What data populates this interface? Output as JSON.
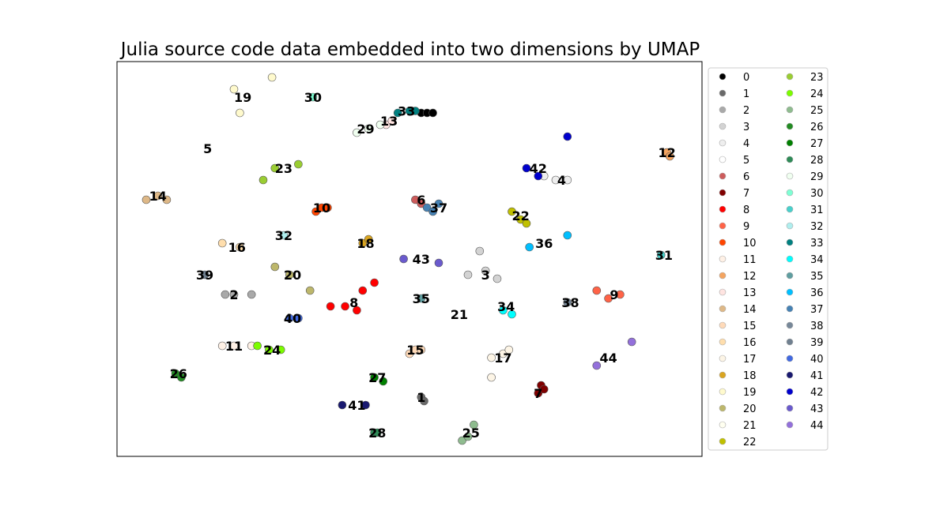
{
  "chart_data": {
    "type": "scatter",
    "title": "Julia source code data embedded into two dimensions by UMAP",
    "xlabel": "",
    "ylabel": "",
    "grid": false,
    "ticks": false,
    "legend_position": "outside-right",
    "legend_columns": 2,
    "series": [
      {
        "name": "0",
        "color": "#000000",
        "points": [
          [
            0.52,
            0.87
          ],
          [
            0.53,
            0.87
          ],
          [
            0.54,
            0.87
          ]
        ],
        "label_at": null
      },
      {
        "name": "1",
        "color": "#696969",
        "points": [
          [
            0.52,
            0.15
          ],
          [
            0.525,
            0.14
          ]
        ],
        "label_at": [
          0.52,
          0.15
        ]
      },
      {
        "name": "2",
        "color": "#a9a9a9",
        "points": [
          [
            0.185,
            0.41
          ],
          [
            0.2,
            0.41
          ],
          [
            0.23,
            0.41
          ]
        ],
        "label_at": [
          0.2,
          0.41
        ]
      },
      {
        "name": "3",
        "color": "#d3d3d3",
        "points": [
          [
            0.6,
            0.46
          ],
          [
            0.63,
            0.47
          ],
          [
            0.65,
            0.45
          ],
          [
            0.62,
            0.52
          ]
        ],
        "label_at": [
          0.63,
          0.46
        ]
      },
      {
        "name": "4",
        "color": "#eeeeee",
        "points": [
          [
            0.73,
            0.71
          ],
          [
            0.75,
            0.7
          ],
          [
            0.77,
            0.7
          ]
        ],
        "label_at": [
          0.76,
          0.7
        ]
      },
      {
        "name": "5",
        "color": "#ffffff",
        "points": [],
        "label_at": [
          0.155,
          0.78
        ]
      },
      {
        "name": "6",
        "color": "#cd5c5c",
        "points": [
          [
            0.51,
            0.65
          ],
          [
            0.52,
            0.64
          ]
        ],
        "label_at": [
          0.52,
          0.65
        ]
      },
      {
        "name": "7",
        "color": "#800000",
        "points": [
          [
            0.72,
            0.16
          ],
          [
            0.725,
            0.18
          ],
          [
            0.73,
            0.17
          ]
        ],
        "label_at": [
          0.72,
          0.16
        ]
      },
      {
        "name": "8",
        "color": "#ff0000",
        "points": [
          [
            0.365,
            0.38
          ],
          [
            0.39,
            0.38
          ],
          [
            0.41,
            0.37
          ],
          [
            0.42,
            0.42
          ],
          [
            0.44,
            0.44
          ]
        ],
        "label_at": [
          0.405,
          0.39
        ]
      },
      {
        "name": "9",
        "color": "#ff6347",
        "points": [
          [
            0.82,
            0.42
          ],
          [
            0.84,
            0.4
          ],
          [
            0.86,
            0.41
          ]
        ],
        "label_at": [
          0.85,
          0.41
        ]
      },
      {
        "name": "10",
        "color": "#ff4500",
        "points": [
          [
            0.34,
            0.62
          ],
          [
            0.35,
            0.63
          ],
          [
            0.36,
            0.63
          ]
        ],
        "label_at": [
          0.35,
          0.63
        ]
      },
      {
        "name": "11",
        "color": "#fff1e6",
        "points": [
          [
            0.18,
            0.28
          ],
          [
            0.2,
            0.28
          ],
          [
            0.23,
            0.28
          ]
        ],
        "label_at": [
          0.2,
          0.28
        ]
      },
      {
        "name": "12",
        "color": "#f4a460",
        "points": [
          [
            0.94,
            0.77
          ],
          [
            0.945,
            0.76
          ]
        ],
        "label_at": [
          0.94,
          0.77
        ]
      },
      {
        "name": "13",
        "color": "#ffe4e1",
        "points": [
          [
            0.46,
            0.84
          ],
          [
            0.47,
            0.85
          ]
        ],
        "label_at": [
          0.465,
          0.85
        ]
      },
      {
        "name": "14",
        "color": "#deb887",
        "points": [
          [
            0.05,
            0.65
          ],
          [
            0.07,
            0.66
          ],
          [
            0.085,
            0.65
          ]
        ],
        "label_at": [
          0.07,
          0.66
        ]
      },
      {
        "name": "15",
        "color": "#ffdab9",
        "points": [
          [
            0.5,
            0.26
          ],
          [
            0.51,
            0.27
          ],
          [
            0.52,
            0.27
          ]
        ],
        "label_at": [
          0.51,
          0.27
        ]
      },
      {
        "name": "16",
        "color": "#ffdead",
        "points": [
          [
            0.18,
            0.54
          ],
          [
            0.21,
            0.53
          ]
        ],
        "label_at": [
          0.205,
          0.53
        ]
      },
      {
        "name": "17",
        "color": "#fdf5e6",
        "points": [
          [
            0.64,
            0.25
          ],
          [
            0.66,
            0.26
          ],
          [
            0.67,
            0.27
          ],
          [
            0.64,
            0.2
          ]
        ],
        "label_at": [
          0.66,
          0.25
        ]
      },
      {
        "name": "18",
        "color": "#daa520",
        "points": [
          [
            0.42,
            0.54
          ],
          [
            0.43,
            0.55
          ]
        ],
        "label_at": [
          0.425,
          0.54
        ]
      },
      {
        "name": "19",
        "color": "#fffacd",
        "points": [
          [
            0.2,
            0.93
          ],
          [
            0.265,
            0.96
          ],
          [
            0.21,
            0.87
          ]
        ],
        "label_at": [
          0.215,
          0.91
        ]
      },
      {
        "name": "20",
        "color": "#bdb76b",
        "points": [
          [
            0.27,
            0.48
          ],
          [
            0.295,
            0.46
          ],
          [
            0.33,
            0.42
          ]
        ],
        "label_at": [
          0.3,
          0.46
        ]
      },
      {
        "name": "21",
        "color": "#fffff0",
        "points": [],
        "label_at": [
          0.585,
          0.36
        ]
      },
      {
        "name": "22",
        "color": "#c0c000",
        "points": [
          [
            0.675,
            0.62
          ],
          [
            0.69,
            0.6
          ],
          [
            0.7,
            0.59
          ]
        ],
        "label_at": [
          0.69,
          0.61
        ]
      },
      {
        "name": "23",
        "color": "#9acd32",
        "points": [
          [
            0.27,
            0.73
          ],
          [
            0.31,
            0.74
          ],
          [
            0.25,
            0.7
          ]
        ],
        "label_at": [
          0.285,
          0.73
        ]
      },
      {
        "name": "24",
        "color": "#7cfc00",
        "points": [
          [
            0.24,
            0.28
          ],
          [
            0.26,
            0.27
          ],
          [
            0.28,
            0.27
          ]
        ],
        "label_at": [
          0.265,
          0.27
        ]
      },
      {
        "name": "25",
        "color": "#8fbc8f",
        "points": [
          [
            0.59,
            0.04
          ],
          [
            0.6,
            0.05
          ],
          [
            0.61,
            0.08
          ]
        ],
        "label_at": [
          0.605,
          0.06
        ]
      },
      {
        "name": "26",
        "color": "#228b22",
        "points": [
          [
            0.1,
            0.21
          ],
          [
            0.11,
            0.2
          ]
        ],
        "label_at": [
          0.105,
          0.21
        ]
      },
      {
        "name": "27",
        "color": "#008000",
        "points": [
          [
            0.44,
            0.2
          ],
          [
            0.455,
            0.19
          ]
        ],
        "label_at": [
          0.445,
          0.2
        ]
      },
      {
        "name": "28",
        "color": "#2e8b57",
        "points": [
          [
            0.44,
            0.06
          ],
          [
            0.445,
            0.06
          ]
        ],
        "label_at": [
          0.445,
          0.06
        ]
      },
      {
        "name": "29",
        "color": "#f0fff0",
        "points": [
          [
            0.41,
            0.82
          ],
          [
            0.43,
            0.83
          ],
          [
            0.45,
            0.84
          ]
        ],
        "label_at": [
          0.425,
          0.83
        ]
      },
      {
        "name": "30",
        "color": "#7fffd4",
        "points": [
          [
            0.335,
            0.91
          ]
        ],
        "label_at": [
          0.335,
          0.91
        ]
      },
      {
        "name": "31",
        "color": "#48d1cc",
        "points": [
          [
            0.93,
            0.51
          ]
        ],
        "label_at": [
          0.935,
          0.51
        ]
      },
      {
        "name": "32",
        "color": "#afeeee",
        "points": [
          [
            0.285,
            0.56
          ]
        ],
        "label_at": [
          0.285,
          0.56
        ]
      },
      {
        "name": "33",
        "color": "#008080",
        "points": [
          [
            0.48,
            0.87
          ],
          [
            0.5,
            0.875
          ],
          [
            0.51,
            0.875
          ]
        ],
        "label_at": [
          0.495,
          0.875
        ]
      },
      {
        "name": "34",
        "color": "#00ffff",
        "points": [
          [
            0.66,
            0.37
          ],
          [
            0.675,
            0.36
          ]
        ],
        "label_at": [
          0.665,
          0.38
        ]
      },
      {
        "name": "35",
        "color": "#5f9ea0",
        "points": [
          [
            0.52,
            0.4
          ]
        ],
        "label_at": [
          0.52,
          0.4
        ]
      },
      {
        "name": "36",
        "color": "#00bfff",
        "points": [
          [
            0.705,
            0.53
          ],
          [
            0.77,
            0.56
          ]
        ],
        "label_at": [
          0.73,
          0.54
        ]
      },
      {
        "name": "37",
        "color": "#4682b4",
        "points": [
          [
            0.53,
            0.63
          ],
          [
            0.54,
            0.62
          ],
          [
            0.55,
            0.64
          ]
        ],
        "label_at": [
          0.55,
          0.63
        ]
      },
      {
        "name": "38",
        "color": "#778899",
        "points": [
          [
            0.77,
            0.39
          ]
        ],
        "label_at": [
          0.775,
          0.39
        ]
      },
      {
        "name": "39",
        "color": "#708090",
        "points": [
          [
            0.15,
            0.46
          ]
        ],
        "label_at": [
          0.15,
          0.46
        ]
      },
      {
        "name": "40",
        "color": "#4169e1",
        "points": [
          [
            0.295,
            0.35
          ],
          [
            0.31,
            0.35
          ]
        ],
        "label_at": [
          0.3,
          0.35
        ]
      },
      {
        "name": "41",
        "color": "#191970",
        "points": [
          [
            0.385,
            0.13
          ],
          [
            0.425,
            0.13
          ]
        ],
        "label_at": [
          0.41,
          0.13
        ]
      },
      {
        "name": "42",
        "color": "#0000cd",
        "points": [
          [
            0.7,
            0.73
          ],
          [
            0.72,
            0.71
          ],
          [
            0.77,
            0.81
          ]
        ],
        "label_at": [
          0.72,
          0.73
        ]
      },
      {
        "name": "43",
        "color": "#6a5acd",
        "points": [
          [
            0.49,
            0.5
          ],
          [
            0.55,
            0.49
          ]
        ],
        "label_at": [
          0.52,
          0.5
        ]
      },
      {
        "name": "44",
        "color": "#9370db",
        "points": [
          [
            0.82,
            0.23
          ],
          [
            0.88,
            0.29
          ]
        ],
        "label_at": [
          0.84,
          0.25
        ]
      }
    ]
  }
}
